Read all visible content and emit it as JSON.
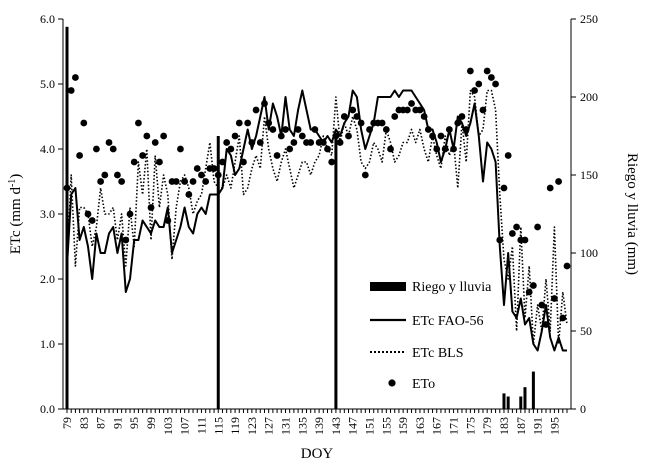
{
  "chart_data": {
    "type": "line",
    "xlabel": "DOY",
    "ylabel_left": "ETc (mm d",
    "ylabel_left_sup": "-1",
    "ylabel_left_close": ")",
    "ylabel_right": "Riego y lluvia (mm)",
    "xlim": [
      79,
      198
    ],
    "ylim_left": [
      0.0,
      6.0
    ],
    "ylim_right": [
      0,
      250
    ],
    "left_ticks": [
      "0.0",
      "1.0",
      "2.0",
      "3.0",
      "4.0",
      "5.0",
      "6.0"
    ],
    "right_ticks": [
      "0",
      "50",
      "100",
      "150",
      "200",
      "250"
    ],
    "x_tick_labels": [
      "79",
      "83",
      "87",
      "91",
      "95",
      "99",
      "103",
      "107",
      "111",
      "115",
      "119",
      "123",
      "127",
      "131",
      "135",
      "139",
      "143",
      "147",
      "151",
      "155",
      "159",
      "163",
      "167",
      "171",
      "175",
      "179",
      "183",
      "187",
      "191",
      "195"
    ],
    "legend": {
      "position": "bottom-right",
      "entries": [
        "Riego y lluvia",
        "ETc FAO-56",
        "ETc BLS",
        "ETo"
      ]
    },
    "series": [
      {
        "name": "Riego y lluvia",
        "kind": "bar",
        "axis": "right",
        "color": "#000000",
        "x": [
          79,
          115,
          143,
          183,
          184,
          187,
          188,
          190
        ],
        "values": [
          245,
          175,
          175,
          10,
          8,
          8,
          14,
          24
        ]
      },
      {
        "name": "ETc FAO-56",
        "kind": "line",
        "axis": "left",
        "color": "#000000",
        "x": [
          79,
          80,
          81,
          82,
          83,
          84,
          85,
          86,
          87,
          88,
          89,
          90,
          91,
          92,
          93,
          94,
          95,
          96,
          97,
          98,
          99,
          100,
          101,
          102,
          103,
          104,
          105,
          106,
          107,
          108,
          109,
          110,
          111,
          112,
          113,
          114,
          115,
          116,
          117,
          118,
          119,
          120,
          121,
          122,
          123,
          124,
          125,
          126,
          127,
          128,
          129,
          130,
          131,
          132,
          133,
          134,
          135,
          136,
          137,
          138,
          139,
          140,
          141,
          142,
          143,
          144,
          145,
          146,
          147,
          148,
          149,
          150,
          151,
          152,
          153,
          154,
          155,
          156,
          157,
          158,
          159,
          160,
          161,
          162,
          163,
          164,
          165,
          166,
          167,
          168,
          169,
          170,
          171,
          172,
          173,
          174,
          175,
          176,
          177,
          178,
          179,
          180,
          181,
          182,
          183,
          184,
          185,
          186,
          187,
          188,
          189,
          190,
          191,
          192,
          193,
          194,
          195,
          196,
          197,
          198
        ],
        "values": [
          2.2,
          3.3,
          3.4,
          2.6,
          2.8,
          2.5,
          2.0,
          2.7,
          2.4,
          2.4,
          2.7,
          2.8,
          2.4,
          2.7,
          1.8,
          2.0,
          2.6,
          2.6,
          2.9,
          2.8,
          2.7,
          2.9,
          2.8,
          2.8,
          3.1,
          2.4,
          2.6,
          2.8,
          3.1,
          2.8,
          2.7,
          3.0,
          3.1,
          3.0,
          3.3,
          3.3,
          3.3,
          3.4,
          4.0,
          3.9,
          3.6,
          3.7,
          4.0,
          4.3,
          4.0,
          4.2,
          4.5,
          4.8,
          4.3,
          4.7,
          4.5,
          4.2,
          4.8,
          4.3,
          4.2,
          4.6,
          4.9,
          4.6,
          4.3,
          4.3,
          4.2,
          4.1,
          4.2,
          4.1,
          4.3,
          4.2,
          4.4,
          4.5,
          4.9,
          4.8,
          4.3,
          4.0,
          4.2,
          4.4,
          4.8,
          4.8,
          4.8,
          4.8,
          4.9,
          4.8,
          4.9,
          4.9,
          4.9,
          4.8,
          4.7,
          4.6,
          4.3,
          4.3,
          4.1,
          3.8,
          4.0,
          4.3,
          4.0,
          4.5,
          4.4,
          4.2,
          4.4,
          4.7,
          4.2,
          3.5,
          4.1,
          4.0,
          3.8,
          2.5,
          1.6,
          2.4,
          1.5,
          1.4,
          1.7,
          1.3,
          1.4,
          1.0,
          0.9,
          1.2,
          1.6,
          1.1,
          0.9,
          1.1,
          0.9,
          0.9
        ]
      },
      {
        "name": "ETc BLS",
        "kind": "line",
        "style": "dotted",
        "axis": "left",
        "color": "#000000",
        "x": [
          79,
          80,
          81,
          82,
          83,
          84,
          85,
          86,
          87,
          88,
          89,
          90,
          91,
          92,
          93,
          94,
          95,
          96,
          97,
          98,
          99,
          100,
          101,
          102,
          103,
          104,
          105,
          106,
          107,
          108,
          109,
          110,
          111,
          112,
          113,
          114,
          115,
          116,
          117,
          118,
          119,
          120,
          121,
          122,
          123,
          124,
          125,
          126,
          127,
          128,
          129,
          130,
          131,
          132,
          133,
          134,
          135,
          136,
          137,
          138,
          139,
          140,
          141,
          142,
          143,
          144,
          145,
          146,
          147,
          148,
          149,
          150,
          151,
          152,
          153,
          154,
          155,
          156,
          157,
          158,
          159,
          160,
          161,
          162,
          163,
          164,
          165,
          166,
          167,
          168,
          169,
          170,
          171,
          172,
          173,
          174,
          175,
          176,
          177,
          178,
          179,
          180,
          181,
          182,
          183,
          184,
          185,
          186,
          187,
          188,
          189,
          190,
          191,
          192,
          193,
          194,
          195,
          196,
          197,
          198
        ],
        "values": [
          2.2,
          3.6,
          2.2,
          3.1,
          3.1,
          3.0,
          2.5,
          2.8,
          3.4,
          3.0,
          3.0,
          3.1,
          2.6,
          3.0,
          2.2,
          3.1,
          2.5,
          3.8,
          3.3,
          4.0,
          2.6,
          3.9,
          3.1,
          3.6,
          3.3,
          2.3,
          3.1,
          3.5,
          3.6,
          3.4,
          3.0,
          3.2,
          3.3,
          3.7,
          4.1,
          3.5,
          3.4,
          3.4,
          3.6,
          3.4,
          3.8,
          4.2,
          3.3,
          3.4,
          3.7,
          3.9,
          3.7,
          4.5,
          4.0,
          3.7,
          3.5,
          3.8,
          4.0,
          3.7,
          3.4,
          3.6,
          3.8,
          3.8,
          3.6,
          3.8,
          3.9,
          4.2,
          4.0,
          3.9,
          4.8,
          4.1,
          4.4,
          4.2,
          4.5,
          4.3,
          3.8,
          3.7,
          3.8,
          4.1,
          4.0,
          3.8,
          4.3,
          4.1,
          3.8,
          3.9,
          4.1,
          4.1,
          4.3,
          4.1,
          4.3,
          4.0,
          3.8,
          4.2,
          3.9,
          3.7,
          4.2,
          3.9,
          4.1,
          3.4,
          4.4,
          3.8,
          4.9,
          4.8,
          4.2,
          4.3,
          4.9,
          4.9,
          4.6,
          3.3,
          2.3,
          2.0,
          2.5,
          1.2,
          2.8,
          1.4,
          2.2,
          1.0,
          1.6,
          1.2,
          2.0,
          1.2,
          2.8,
          1.0,
          1.8,
          1.3
        ]
      },
      {
        "name": "ETo",
        "kind": "scatter",
        "axis": "left",
        "color": "#000000",
        "x": [
          79,
          80,
          81,
          82,
          83,
          84,
          85,
          86,
          87,
          88,
          89,
          90,
          91,
          92,
          93,
          94,
          95,
          96,
          97,
          98,
          99,
          100,
          101,
          102,
          103,
          104,
          105,
          106,
          107,
          108,
          109,
          110,
          111,
          112,
          113,
          114,
          115,
          116,
          117,
          118,
          119,
          120,
          121,
          122,
          123,
          124,
          125,
          126,
          127,
          128,
          129,
          130,
          131,
          132,
          133,
          134,
          135,
          136,
          137,
          138,
          139,
          140,
          141,
          142,
          143,
          144,
          145,
          146,
          147,
          148,
          149,
          150,
          151,
          152,
          153,
          154,
          155,
          156,
          157,
          158,
          159,
          160,
          161,
          162,
          163,
          164,
          165,
          166,
          167,
          168,
          169,
          170,
          171,
          172,
          173,
          174,
          175,
          176,
          177,
          178,
          179,
          180,
          181,
          182,
          183,
          184,
          185,
          186,
          187,
          188,
          189,
          190,
          191,
          192,
          193,
          194,
          195,
          196,
          197,
          198
        ],
        "values": [
          3.4,
          4.9,
          5.1,
          3.9,
          4.4,
          3.0,
          2.9,
          4.0,
          3.5,
          3.6,
          4.1,
          4.0,
          3.6,
          3.5,
          2.6,
          3.0,
          3.8,
          4.4,
          3.9,
          4.2,
          3.1,
          4.1,
          3.8,
          4.2,
          2.9,
          3.5,
          3.5,
          4.0,
          3.5,
          3.3,
          3.5,
          3.7,
          3.6,
          3.5,
          3.7,
          3.7,
          3.6,
          3.8,
          4.1,
          4.0,
          4.2,
          4.4,
          3.8,
          4.4,
          4.1,
          4.6,
          4.1,
          4.7,
          4.4,
          4.3,
          3.9,
          4.2,
          4.3,
          4.0,
          4.1,
          4.3,
          4.2,
          4.1,
          4.1,
          4.3,
          4.1,
          4.1,
          4.0,
          3.8,
          4.2,
          4.1,
          4.5,
          4.2,
          4.6,
          4.5,
          4.4,
          3.6,
          4.3,
          4.4,
          4.4,
          4.4,
          4.3,
          4.0,
          4.5,
          4.6,
          4.6,
          4.6,
          4.7,
          4.6,
          4.6,
          4.5,
          4.3,
          4.2,
          4.0,
          4.2,
          4.0,
          4.3,
          4.0,
          4.4,
          4.5,
          4.3,
          5.2,
          4.9,
          5.0,
          4.6,
          5.2,
          5.1,
          5.0,
          2.6,
          3.4,
          3.9,
          2.7,
          2.8,
          2.6,
          2.6,
          1.8,
          1.9,
          2.8,
          1.6,
          1.3,
          3.4,
          1.7,
          3.5,
          1.4,
          2.2
        ]
      }
    ]
  }
}
